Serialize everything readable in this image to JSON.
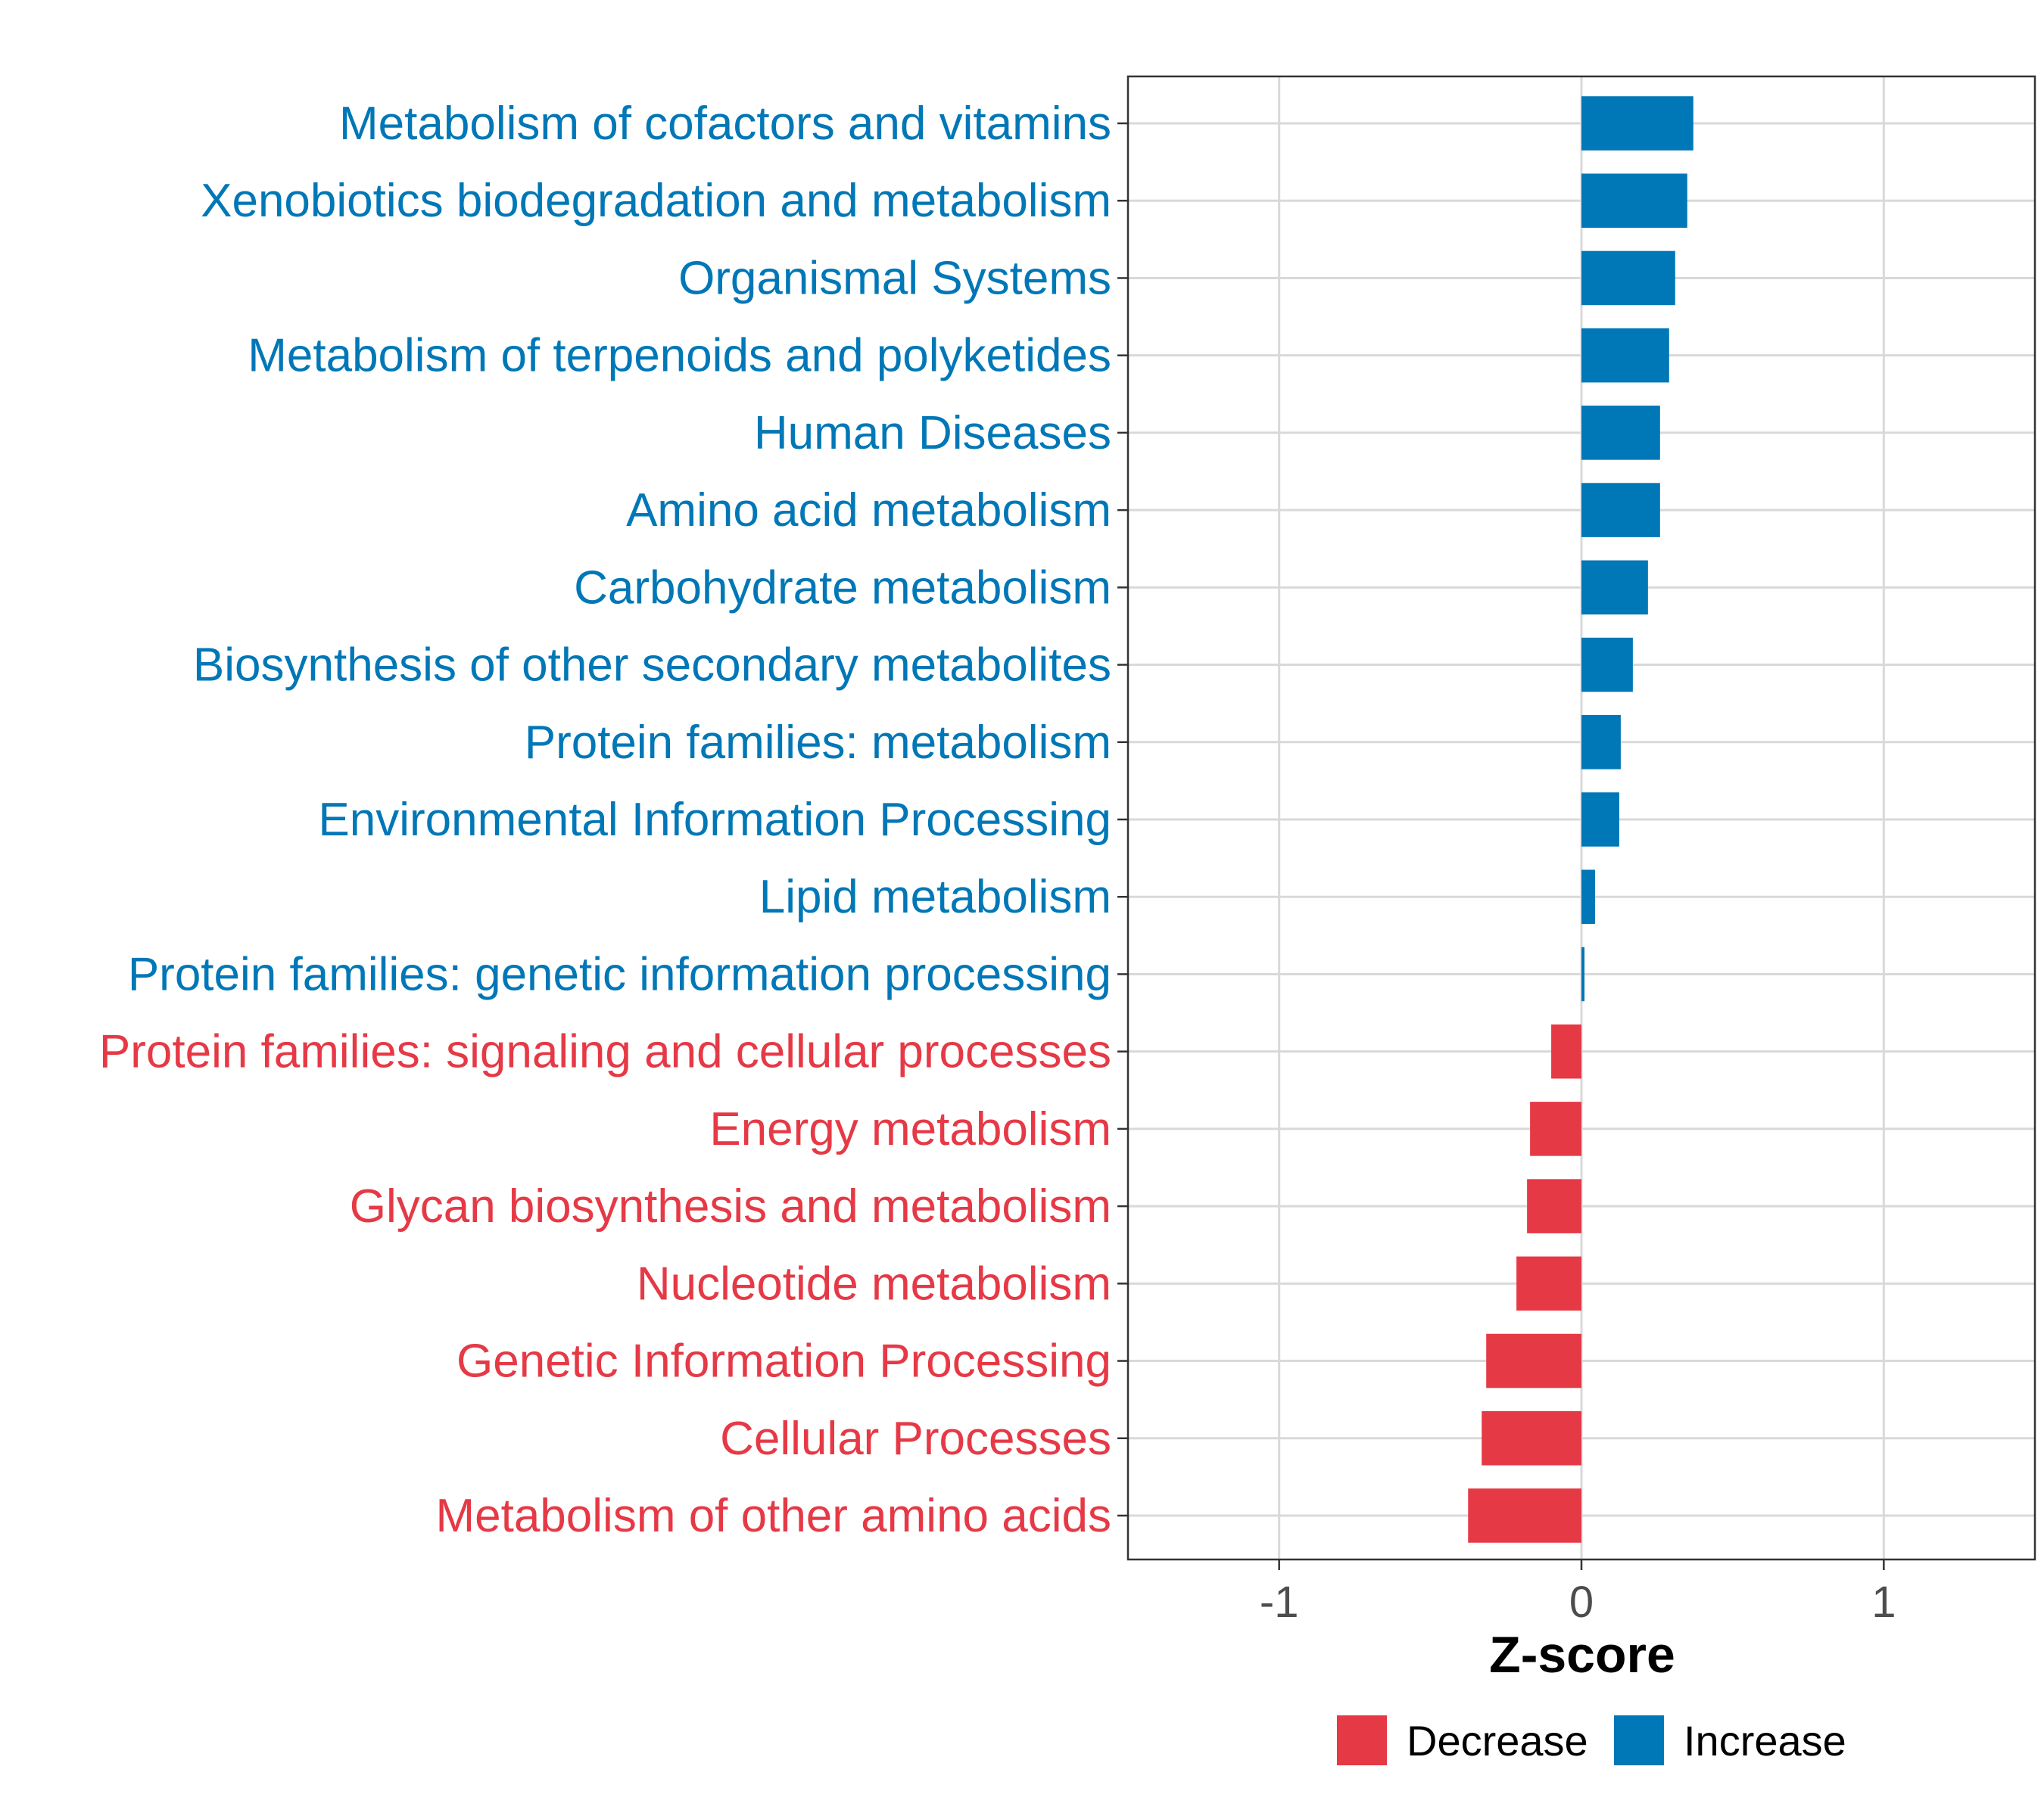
{
  "chart_data": {
    "type": "bar",
    "orientation": "horizontal",
    "categories": [
      "Metabolism of cofactors and vitamins",
      "Xenobiotics biodegradation and metabolism",
      "Organismal Systems",
      "Metabolism of terpenoids and polyketides",
      "Human Diseases",
      "Amino acid metabolism",
      "Carbohydrate metabolism",
      "Biosynthesis of other secondary metabolites",
      "Protein families: metabolism",
      "Environmental Information Processing",
      "Lipid metabolism",
      "Protein families: genetic information processing",
      "Protein families: signaling and cellular processes",
      "Energy metabolism",
      "Glycan biosynthesis and metabolism",
      "Nucleotide metabolism",
      "Genetic Information Processing",
      "Cellular Processes",
      "Metabolism of other amino acids"
    ],
    "values": [
      0.37,
      0.35,
      0.31,
      0.29,
      0.26,
      0.26,
      0.22,
      0.17,
      0.13,
      0.125,
      0.045,
      0.01,
      -0.1,
      -0.17,
      -0.18,
      -0.215,
      -0.315,
      -0.33,
      -0.375
    ],
    "groups": [
      "Increase",
      "Increase",
      "Increase",
      "Increase",
      "Increase",
      "Increase",
      "Increase",
      "Increase",
      "Increase",
      "Increase",
      "Increase",
      "Increase",
      "Decrease",
      "Decrease",
      "Decrease",
      "Decrease",
      "Decrease",
      "Decrease",
      "Decrease"
    ],
    "xlabel": "Z-score",
    "xlim": [
      -1.5,
      1.5
    ],
    "xticks": [
      -1,
      0,
      1
    ],
    "xtick_labels": [
      "-1",
      "0",
      "1"
    ],
    "grid": true,
    "legend": {
      "position": "bottom",
      "entries": [
        {
          "label": "Decrease",
          "color": "#E63946"
        },
        {
          "label": "Increase",
          "color": "#0077B6"
        }
      ]
    },
    "colors": {
      "Increase": "#0077B6",
      "Decrease": "#E63946"
    }
  }
}
